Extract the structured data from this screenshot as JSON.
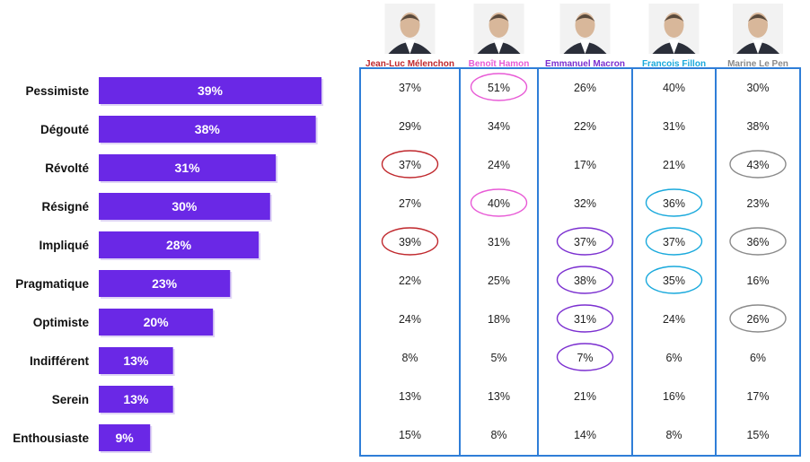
{
  "chart_data": {
    "type": "table",
    "categories": [
      "Pessimiste",
      "Dégouté",
      "Révolté",
      "Résigné",
      "Impliqué",
      "Pragmatique",
      "Optimiste",
      "Indifférent",
      "Serein",
      "Enthousiaste"
    ],
    "overall": {
      "type": "bar",
      "orientation": "horizontal",
      "values": [
        39,
        38,
        31,
        30,
        28,
        23,
        20,
        13,
        13,
        9
      ],
      "labels": [
        "39%",
        "38%",
        "31%",
        "30%",
        "28%",
        "23%",
        "20%",
        "13%",
        "13%",
        "9%"
      ],
      "color": "#6a28e6",
      "xlim": [
        0,
        45
      ]
    },
    "candidates": [
      {
        "name": "Jean-Luc Mélenchon",
        "color": "#c0282d",
        "values": [
          37,
          29,
          37,
          27,
          39,
          22,
          24,
          8,
          13,
          15
        ],
        "labels": [
          "37%",
          "29%",
          "37%",
          "27%",
          "39%",
          "22%",
          "24%",
          "8%",
          "13%",
          "15%"
        ],
        "highlighted": [
          false,
          false,
          true,
          false,
          true,
          false,
          false,
          false,
          false,
          false
        ]
      },
      {
        "name": "Benoît Hamon",
        "color": "#e85ad6",
        "values": [
          51,
          34,
          24,
          40,
          31,
          25,
          18,
          5,
          13,
          8
        ],
        "labels": [
          "51%",
          "34%",
          "24%",
          "40%",
          "31%",
          "25%",
          "18%",
          "5%",
          "13%",
          "8%"
        ],
        "highlighted": [
          true,
          false,
          false,
          true,
          false,
          false,
          false,
          false,
          false,
          false
        ]
      },
      {
        "name": "Emmanuel Macron",
        "color": "#7b2fd0",
        "values": [
          26,
          22,
          17,
          32,
          37,
          38,
          31,
          7,
          21,
          14
        ],
        "labels": [
          "26%",
          "22%",
          "17%",
          "32%",
          "37%",
          "38%",
          "31%",
          "7%",
          "21%",
          "14%"
        ],
        "highlighted": [
          false,
          false,
          false,
          false,
          true,
          true,
          true,
          true,
          false,
          false
        ]
      },
      {
        "name": "Francois Fillon",
        "color": "#19a9dc",
        "values": [
          40,
          31,
          21,
          36,
          37,
          35,
          24,
          6,
          16,
          8
        ],
        "labels": [
          "40%",
          "31%",
          "21%",
          "36%",
          "37%",
          "35%",
          "24%",
          "6%",
          "16%",
          "8%"
        ],
        "highlighted": [
          false,
          false,
          false,
          true,
          true,
          true,
          false,
          false,
          false,
          false
        ]
      },
      {
        "name": "Marine Le Pen",
        "color": "#8a8a8a",
        "values": [
          30,
          38,
          43,
          23,
          36,
          16,
          26,
          6,
          17,
          15
        ],
        "labels": [
          "30%",
          "38%",
          "43%",
          "23%",
          "36%",
          "16%",
          "26%",
          "6%",
          "17%",
          "15%"
        ],
        "highlighted": [
          false,
          false,
          true,
          false,
          true,
          false,
          true,
          false,
          false,
          false
        ]
      }
    ],
    "table_border_color": "#2f7ed8",
    "grid": false
  }
}
